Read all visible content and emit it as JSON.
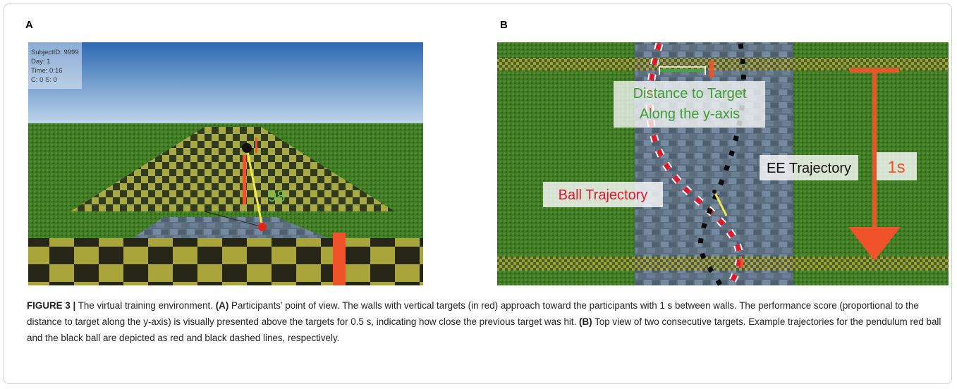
{
  "panel_a": {
    "label": "A",
    "hud": [
      "SubjectID: 9999",
      "Day: 1",
      "Time: 0:16",
      "C: 0 S: 0"
    ],
    "score": "98"
  },
  "panel_b": {
    "label": "B",
    "distance_label": [
      "Distance to Target",
      "Along the y-axis"
    ],
    "ee_label": "EE Trajectory",
    "ball_label": "Ball Trajectory",
    "time_label": "1s"
  },
  "caption": [
    "FIGURE 3 |",
    " The virtual training environment. ",
    "(A)",
    " Participants’ point of view. The walls with vertical targets (in red) approach toward the participants with 1 s between walls. The performance score (proportional to the distance to target along the y-axis) is visually presented above the targets for 0.5 s, indicating how close the previous target was hit. ",
    "(B)",
    " Top view of two consecutive targets. Example trajectories for the pendulum red ball and the black ball are depicted as red and black dashed lines, respectively."
  ]
}
